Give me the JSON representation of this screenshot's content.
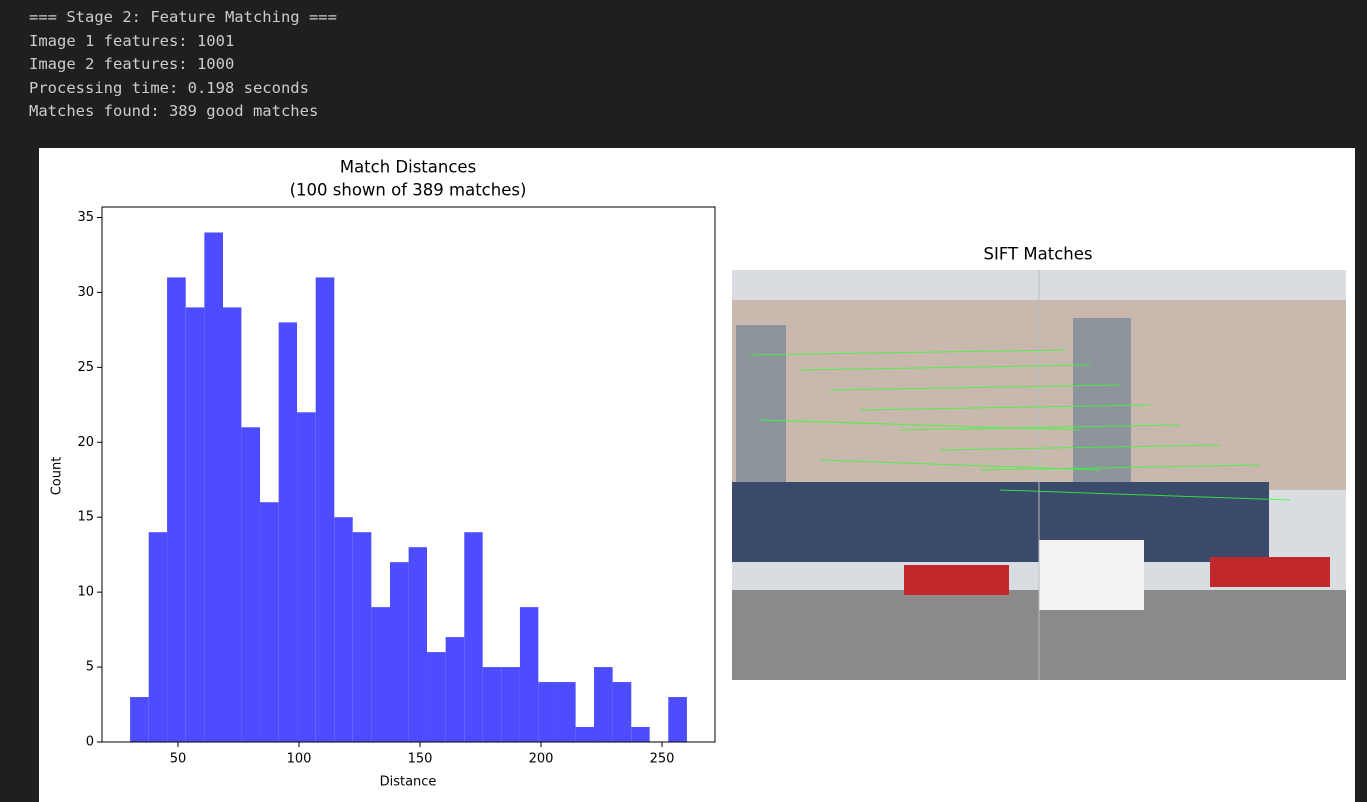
{
  "console": {
    "lines": [
      "=== Stage 2: Feature Matching ===",
      "Image 1 features: 1001",
      "Image 2 features: 1000",
      "Processing time: 0.198 seconds",
      "Matches found: 389 good matches"
    ]
  },
  "chart_data": {
    "type": "histogram",
    "title": [
      "Match Distances",
      "(100 shown of 389 matches)"
    ],
    "x_label": "Distance",
    "y_label": "Count",
    "color": "#4d4dff",
    "bins": [
      30.2,
      37.9,
      45.5,
      53.2,
      60.9,
      68.6,
      76.2,
      83.9,
      91.6,
      99.2,
      106.9,
      114.6,
      122.2,
      129.9,
      137.6,
      145.3,
      152.9,
      160.6,
      168.3,
      175.9,
      183.6,
      191.3,
      198.9,
      206.6,
      214.3,
      221.9,
      229.6,
      237.3,
      244.9,
      252.6,
      260.3
    ],
    "counts": [
      3,
      14,
      31,
      29,
      34,
      29,
      21,
      16,
      28,
      22,
      31,
      15,
      14,
      9,
      12,
      13,
      6,
      7,
      14,
      5,
      5,
      9,
      4,
      4,
      1,
      5,
      4,
      1,
      0,
      3
    ],
    "xlim": [
      18.6,
      271.9
    ],
    "xticks": [
      50,
      100,
      150,
      200,
      250
    ],
    "ylim": [
      0,
      35.7
    ],
    "yticks": [
      0,
      5,
      10,
      15,
      20,
      25,
      30,
      35
    ]
  },
  "image_panel": {
    "title": "SIFT Matches"
  }
}
